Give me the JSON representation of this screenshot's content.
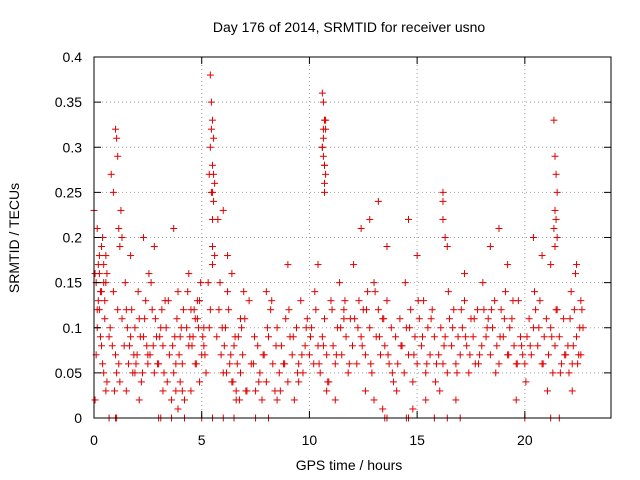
{
  "chart_data": {
    "type": "scatter",
    "title": "Day 176 of 2014, SRMTID for receiver usno",
    "xlabel": "GPS time / hours",
    "ylabel": "SRMTID / TECUs",
    "xlim": [
      0,
      24
    ],
    "ylim": [
      0,
      0.4
    ],
    "xticks": [
      0,
      5,
      10,
      15,
      20
    ],
    "xtick_labels": [
      "0",
      "5",
      "10",
      "15",
      "20"
    ],
    "yticks": [
      0,
      0.05,
      0.1,
      0.15,
      0.2,
      0.25,
      0.3,
      0.35,
      0.4
    ],
    "ytick_labels": [
      "0",
      "0.05",
      "0.1",
      "0.15",
      "0.2",
      "0.25",
      "0.3",
      "0.35",
      "0.4"
    ],
    "grid": true,
    "marker": "plus",
    "marker_color": "#e00000",
    "series": [
      {
        "name": "SRMTID",
        "x": [
          0.0,
          0.05,
          0.1,
          0.15,
          0.2,
          0.25,
          0.3,
          0.35,
          0.4,
          0.45,
          0.5,
          0.55,
          0.6,
          0.15,
          0.25,
          0.35,
          0.45,
          0.55,
          0.1,
          0.3,
          0.5,
          0.2,
          0.4,
          0.6,
          0.05,
          0.15,
          0.35,
          0.45,
          0.25,
          0.55,
          0.7,
          0.8,
          0.9,
          1.0,
          1.05,
          1.1,
          1.15,
          1.2,
          1.25,
          1.3,
          1.0,
          1.05,
          1.1,
          1.15,
          0.9,
          1.2,
          0.75,
          0.85,
          0.95,
          1.3,
          1.4,
          1.5,
          1.6,
          1.7,
          1.8,
          1.9,
          2.0,
          2.1,
          2.2,
          2.3,
          2.4,
          2.5,
          1.45,
          1.55,
          1.65,
          1.75,
          1.85,
          1.95,
          2.05,
          2.15,
          2.25,
          2.35,
          2.45,
          2.55,
          1.5,
          1.7,
          1.9,
          2.1,
          2.3,
          2.5,
          2.6,
          2.7,
          2.8,
          2.9,
          3.0,
          3.1,
          3.2,
          3.3,
          3.4,
          3.5,
          2.65,
          2.75,
          2.85,
          2.95,
          3.05,
          3.15,
          3.25,
          3.35,
          3.45,
          2.8,
          3.2,
          3.6,
          3.7,
          3.8,
          3.9,
          4.0,
          4.1,
          4.2,
          3.65,
          3.75,
          3.85,
          3.95,
          4.05,
          4.15,
          3.7,
          3.9,
          4.1,
          3.8,
          4.0,
          4.3,
          4.4,
          4.5,
          4.6,
          4.7,
          4.8,
          4.9,
          5.0,
          5.1,
          5.2,
          4.35,
          4.45,
          4.55,
          4.65,
          4.75,
          4.85,
          4.95,
          5.05,
          5.15,
          4.5,
          4.7,
          4.9,
          5.1,
          4.4,
          4.8,
          5.3,
          5.35,
          5.4,
          5.45,
          5.5,
          5.55,
          5.6,
          5.4,
          5.45,
          5.5,
          5.55,
          5.5,
          5.5,
          5.45,
          5.5,
          5.55,
          5.4,
          5.6,
          5.35,
          5.5,
          5.7,
          5.8,
          5.9,
          6.0,
          6.1,
          6.2,
          6.3,
          6.4,
          6.5,
          6.6,
          6.7,
          6.8,
          6.9,
          7.0,
          7.1,
          7.2,
          7.3,
          5.75,
          5.85,
          5.95,
          6.05,
          6.15,
          6.25,
          6.35,
          6.45,
          6.55,
          6.65,
          6.75,
          6.85,
          6.95,
          7.05,
          6.0,
          6.2,
          6.4,
          6.6,
          6.8,
          7.4,
          7.5,
          7.6,
          7.7,
          7.8,
          7.9,
          8.0,
          8.1,
          8.2,
          8.3,
          8.4,
          8.5,
          8.6,
          8.7,
          8.8,
          8.9,
          9.0,
          9.1,
          9.2,
          9.3,
          9.4,
          9.5,
          9.6,
          9.7,
          9.8,
          9.9,
          7.45,
          7.65,
          7.85,
          8.05,
          8.25,
          8.45,
          8.65,
          8.85,
          9.05,
          9.25,
          9.45,
          9.65,
          9.85,
          8.0,
          8.5,
          9.0,
          9.5,
          10.0,
          10.1,
          10.2,
          10.3,
          10.4,
          10.5,
          10.6,
          10.7,
          10.8,
          10.9,
          11.0,
          11.1,
          11.2,
          11.3,
          11.4,
          11.5,
          11.6,
          11.7,
          11.8,
          11.9,
          10.05,
          10.25,
          10.45,
          10.65,
          10.85,
          11.05,
          11.25,
          11.45,
          11.65,
          11.85,
          10.4,
          10.8,
          11.2,
          11.6,
          10.6,
          10.65,
          10.7,
          10.75,
          10.6,
          10.65,
          10.7,
          10.75,
          10.7,
          10.65,
          10.7,
          10.6,
          10.75,
          10.7,
          10.65,
          12.0,
          12.1,
          12.2,
          12.3,
          12.4,
          12.5,
          12.6,
          12.7,
          12.8,
          12.9,
          13.0,
          13.1,
          13.2,
          13.3,
          13.4,
          13.5,
          13.6,
          13.7,
          13.8,
          13.9,
          12.05,
          12.25,
          12.45,
          12.65,
          12.85,
          13.05,
          13.25,
          13.45,
          13.65,
          13.85,
          12.4,
          12.8,
          13.2,
          13.6,
          12.6,
          13.0,
          13.4,
          14.0,
          14.1,
          14.2,
          14.3,
          14.4,
          14.5,
          14.6,
          14.7,
          14.8,
          14.9,
          15.0,
          15.1,
          15.2,
          15.3,
          15.4,
          15.5,
          15.6,
          15.7,
          15.8,
          15.9,
          14.05,
          14.25,
          14.45,
          14.65,
          14.85,
          15.05,
          15.25,
          15.45,
          15.65,
          15.85,
          14.6,
          15.0,
          15.4,
          14.8,
          16.0,
          16.1,
          16.2,
          16.3,
          16.4,
          16.5,
          16.6,
          16.7,
          16.8,
          16.9,
          17.0,
          17.1,
          17.2,
          17.3,
          17.4,
          17.5,
          17.6,
          17.7,
          17.8,
          17.9,
          16.05,
          16.25,
          16.45,
          16.65,
          16.85,
          17.05,
          17.25,
          17.45,
          17.65,
          17.85,
          16.2,
          16.2,
          16.2,
          16.3,
          16.4,
          16.8,
          17.2,
          18.0,
          18.1,
          18.2,
          18.3,
          18.4,
          18.5,
          18.6,
          18.7,
          18.8,
          18.9,
          19.0,
          19.1,
          19.2,
          19.3,
          19.4,
          19.5,
          19.6,
          19.7,
          19.8,
          19.9,
          18.05,
          18.25,
          18.45,
          18.65,
          18.85,
          19.05,
          19.25,
          19.45,
          19.65,
          19.85,
          18.4,
          18.8,
          19.2,
          19.6,
          20.0,
          20.1,
          20.2,
          20.3,
          20.4,
          20.5,
          20.6,
          20.7,
          20.8,
          20.9,
          21.0,
          21.1,
          21.2,
          21.3,
          21.4,
          21.5,
          21.6,
          21.7,
          21.8,
          21.9,
          20.05,
          20.25,
          20.45,
          20.65,
          20.85,
          21.05,
          21.25,
          21.45,
          21.65,
          21.85,
          20.4,
          20.8,
          21.2,
          21.35,
          21.4,
          21.45,
          21.5,
          21.4,
          21.45,
          21.5,
          21.35,
          21.4,
          22.0,
          22.1,
          22.2,
          22.3,
          22.4,
          22.5,
          22.6,
          22.7,
          22.05,
          22.15,
          22.25,
          22.35,
          22.45,
          22.55,
          22.65,
          22.2,
          22.4,
          22.6,
          0.7,
          1.0,
          1.05,
          3.0,
          3.1,
          3.6,
          4.2,
          5.0,
          5.5,
          6.0,
          6.5,
          7.5,
          8.1,
          13.5,
          13.6,
          14.5,
          14.6,
          15.8,
          16.4,
          17.0,
          20.0,
          21.2,
          21.6
        ],
        "y": [
          0.23,
          0.16,
          0.15,
          0.21,
          0.17,
          0.16,
          0.14,
          0.19,
          0.2,
          0.15,
          0.13,
          0.18,
          0.16,
          0.1,
          0.12,
          0.08,
          0.05,
          0.03,
          0.07,
          0.09,
          0.11,
          0.13,
          0.06,
          0.04,
          0.02,
          0.12,
          0.14,
          0.17,
          0.18,
          0.15,
          0.09,
          0.27,
          0.25,
          0.32,
          0.31,
          0.29,
          0.21,
          0.19,
          0.23,
          0.2,
          0.07,
          0.05,
          0.12,
          0.06,
          0.14,
          0.04,
          0.1,
          0.08,
          0.03,
          0.11,
          0.08,
          0.12,
          0.06,
          0.09,
          0.05,
          0.1,
          0.07,
          0.11,
          0.04,
          0.09,
          0.13,
          0.06,
          0.15,
          0.1,
          0.08,
          0.12,
          0.07,
          0.06,
          0.14,
          0.09,
          0.05,
          0.11,
          0.08,
          0.16,
          0.03,
          0.18,
          0.05,
          0.02,
          0.2,
          0.07,
          0.07,
          0.12,
          0.05,
          0.09,
          0.06,
          0.1,
          0.08,
          0.13,
          0.04,
          0.07,
          0.15,
          0.08,
          0.11,
          0.06,
          0.09,
          0.12,
          0.05,
          0.1,
          0.13,
          0.19,
          0.03,
          0.02,
          0.05,
          0.03,
          0.01,
          0.04,
          0.06,
          0.02,
          0.08,
          0.09,
          0.11,
          0.07,
          0.1,
          0.12,
          0.21,
          0.14,
          0.03,
          0.06,
          0.09,
          0.1,
          0.08,
          0.12,
          0.09,
          0.06,
          0.11,
          0.13,
          0.07,
          0.1,
          0.05,
          0.14,
          0.09,
          0.08,
          0.12,
          0.06,
          0.1,
          0.15,
          0.09,
          0.07,
          0.03,
          0.11,
          0.04,
          0.08,
          0.16,
          0.13,
          0.15,
          0.27,
          0.38,
          0.35,
          0.33,
          0.31,
          0.26,
          0.3,
          0.25,
          0.28,
          0.27,
          0.25,
          0.22,
          0.32,
          0.19,
          0.24,
          0.12,
          0.18,
          0.1,
          0.17,
          0.09,
          0.12,
          0.07,
          0.05,
          0.1,
          0.14,
          0.06,
          0.04,
          0.08,
          0.03,
          0.09,
          0.05,
          0.07,
          0.11,
          0.03,
          0.13,
          0.06,
          0.22,
          0.15,
          0.1,
          0.08,
          0.05,
          0.12,
          0.07,
          0.04,
          0.09,
          0.06,
          0.02,
          0.1,
          0.14,
          0.03,
          0.23,
          0.18,
          0.16,
          0.02,
          0.11,
          0.06,
          0.03,
          0.08,
          0.05,
          0.02,
          0.07,
          0.04,
          0.09,
          0.12,
          0.06,
          0.03,
          0.1,
          0.05,
          0.08,
          0.06,
          0.11,
          0.04,
          0.09,
          0.07,
          0.02,
          0.1,
          0.06,
          0.13,
          0.05,
          0.08,
          0.11,
          0.09,
          0.04,
          0.07,
          0.1,
          0.13,
          0.08,
          0.03,
          0.06,
          0.12,
          0.09,
          0.05,
          0.07,
          0.1,
          0.14,
          0.02,
          0.17,
          0.04,
          0.07,
          0.1,
          0.06,
          0.12,
          0.08,
          0.05,
          0.09,
          0.11,
          0.07,
          0.04,
          0.13,
          0.08,
          0.06,
          0.1,
          0.15,
          0.07,
          0.12,
          0.09,
          0.05,
          0.11,
          0.09,
          0.14,
          0.06,
          0.08,
          0.04,
          0.12,
          0.07,
          0.1,
          0.13,
          0.06,
          0.17,
          0.03,
          0.02,
          0.11,
          0.36,
          0.35,
          0.33,
          0.32,
          0.3,
          0.29,
          0.28,
          0.27,
          0.26,
          0.31,
          0.25,
          0.3,
          0.33,
          0.28,
          0.32,
          0.08,
          0.11,
          0.06,
          0.13,
          0.09,
          0.12,
          0.07,
          0.14,
          0.1,
          0.05,
          0.15,
          0.09,
          0.12,
          0.07,
          0.11,
          0.08,
          0.13,
          0.06,
          0.1,
          0.04,
          0.17,
          0.1,
          0.08,
          0.12,
          0.06,
          0.14,
          0.09,
          0.11,
          0.07,
          0.05,
          0.21,
          0.22,
          0.24,
          0.19,
          0.03,
          0.02,
          0.01,
          0.09,
          0.06,
          0.11,
          0.08,
          0.05,
          0.1,
          0.07,
          0.12,
          0.04,
          0.09,
          0.06,
          0.11,
          0.08,
          0.13,
          0.05,
          0.1,
          0.07,
          0.12,
          0.09,
          0.06,
          0.03,
          0.08,
          0.15,
          0.1,
          0.07,
          0.13,
          0.09,
          0.06,
          0.11,
          0.04,
          0.22,
          0.18,
          0.02,
          0.01,
          0.07,
          0.1,
          0.06,
          0.09,
          0.05,
          0.11,
          0.08,
          0.12,
          0.06,
          0.09,
          0.07,
          0.1,
          0.13,
          0.08,
          0.05,
          0.11,
          0.09,
          0.06,
          0.12,
          0.07,
          0.03,
          0.08,
          0.14,
          0.1,
          0.05,
          0.12,
          0.09,
          0.07,
          0.11,
          0.06,
          0.25,
          0.24,
          0.22,
          0.2,
          0.19,
          0.02,
          0.16,
          0.08,
          0.12,
          0.09,
          0.11,
          0.07,
          0.1,
          0.13,
          0.08,
          0.06,
          0.12,
          0.09,
          0.14,
          0.07,
          0.1,
          0.11,
          0.08,
          0.06,
          0.13,
          0.09,
          0.07,
          0.15,
          0.1,
          0.12,
          0.05,
          0.09,
          0.11,
          0.07,
          0.13,
          0.06,
          0.08,
          0.19,
          0.21,
          0.17,
          0.02,
          0.06,
          0.09,
          0.11,
          0.07,
          0.1,
          0.12,
          0.08,
          0.13,
          0.06,
          0.09,
          0.11,
          0.07,
          0.1,
          0.05,
          0.08,
          0.12,
          0.09,
          0.06,
          0.11,
          0.07,
          0.04,
          0.08,
          0.14,
          0.1,
          0.06,
          0.03,
          0.09,
          0.12,
          0.05,
          0.07,
          0.2,
          0.18,
          0.17,
          0.33,
          0.29,
          0.27,
          0.25,
          0.23,
          0.22,
          0.2,
          0.21,
          0.19,
          0.08,
          0.11,
          0.06,
          0.12,
          0.09,
          0.07,
          0.13,
          0.1,
          0.05,
          0.14,
          0.08,
          0.16,
          0.06,
          0.1,
          0.12,
          0.03,
          0.17,
          0.07,
          0.0,
          0.0,
          0.0,
          0.0,
          0.0,
          0.0,
          0.0,
          0.0,
          0.0,
          0.0,
          0.0,
          0.0,
          0.0,
          0.0,
          0.0,
          0.0,
          0.0,
          0.0,
          0.0,
          0.0,
          0.0,
          0.0,
          0.0
        ]
      }
    ]
  }
}
